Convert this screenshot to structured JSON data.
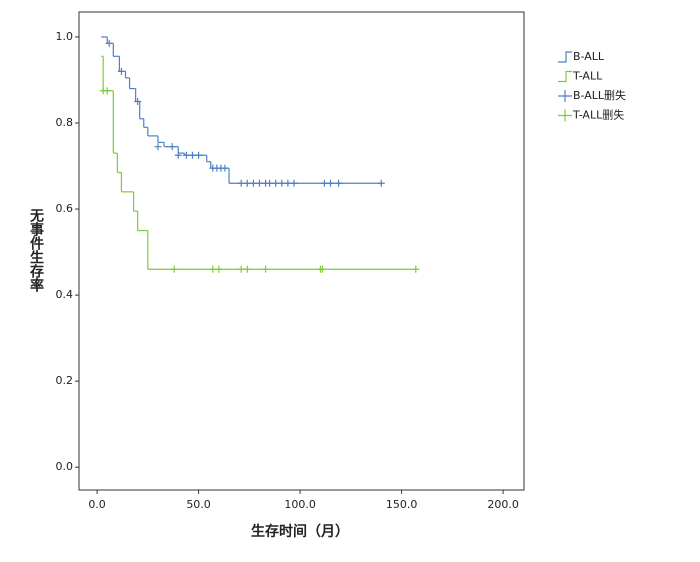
{
  "chart_data": {
    "type": "step",
    "xlabel": "生存时间（月）",
    "ylabel": "无事件生存率",
    "xlim": [
      -8.9,
      210.3
    ],
    "ylim": [
      -0.053,
      1.058
    ],
    "xticks": [
      {
        "value": 0,
        "label": "0.0"
      },
      {
        "value": 50,
        "label": "50.0"
      },
      {
        "value": 100,
        "label": "100.0"
      },
      {
        "value": 150,
        "label": "150.0"
      },
      {
        "value": 200,
        "label": "200.0"
      }
    ],
    "yticks": [
      {
        "value": 0,
        "label": "0.0"
      },
      {
        "value": 0.2,
        "label": "0.2"
      },
      {
        "value": 0.4,
        "label": "0.4"
      },
      {
        "value": 0.6,
        "label": "0.6"
      },
      {
        "value": 0.8,
        "label": "0.8"
      },
      {
        "value": 1,
        "label": "1.0"
      }
    ],
    "legend": "right",
    "series": [
      {
        "name": "B-ALL",
        "color": "#4f7fc4",
        "kind": "step",
        "x": [
          2,
          5,
          8,
          11,
          14,
          16,
          19,
          21,
          23,
          25,
          30,
          33,
          40,
          43,
          54,
          56,
          65,
          140
        ],
        "values": [
          1.0,
          0.985,
          0.955,
          0.92,
          0.905,
          0.88,
          0.85,
          0.81,
          0.79,
          0.77,
          0.755,
          0.745,
          0.73,
          0.725,
          0.71,
          0.695,
          0.66,
          0.66
        ]
      },
      {
        "name": "T-ALL",
        "color": "#7ccb3a",
        "kind": "step",
        "x": [
          2,
          3,
          8,
          10,
          12,
          18,
          20,
          25,
          157
        ],
        "values": [
          0.955,
          0.875,
          0.73,
          0.685,
          0.64,
          0.595,
          0.55,
          0.46,
          0.46
        ]
      },
      {
        "name": "B-ALL删失",
        "color": "#4f7fc4",
        "kind": "censor",
        "x": [
          6,
          12,
          20,
          30,
          37,
          40,
          44,
          47,
          50,
          57,
          59,
          61,
          63,
          71,
          74,
          77,
          80,
          83,
          85,
          88,
          91,
          94,
          97,
          112,
          115,
          119,
          140
        ],
        "values": [
          0.985,
          0.92,
          0.85,
          0.745,
          0.745,
          0.725,
          0.725,
          0.725,
          0.725,
          0.695,
          0.695,
          0.695,
          0.695,
          0.66,
          0.66,
          0.66,
          0.66,
          0.66,
          0.66,
          0.66,
          0.66,
          0.66,
          0.66,
          0.66,
          0.66,
          0.66,
          0.66
        ]
      },
      {
        "name": "T-ALL删失",
        "color": "#7ccb3a",
        "kind": "censor",
        "x": [
          3,
          5,
          38,
          57,
          60,
          71,
          74,
          83,
          110,
          111,
          157
        ],
        "values": [
          0.875,
          0.875,
          0.46,
          0.46,
          0.46,
          0.46,
          0.46,
          0.46,
          0.46,
          0.46,
          0.46
        ]
      }
    ]
  }
}
